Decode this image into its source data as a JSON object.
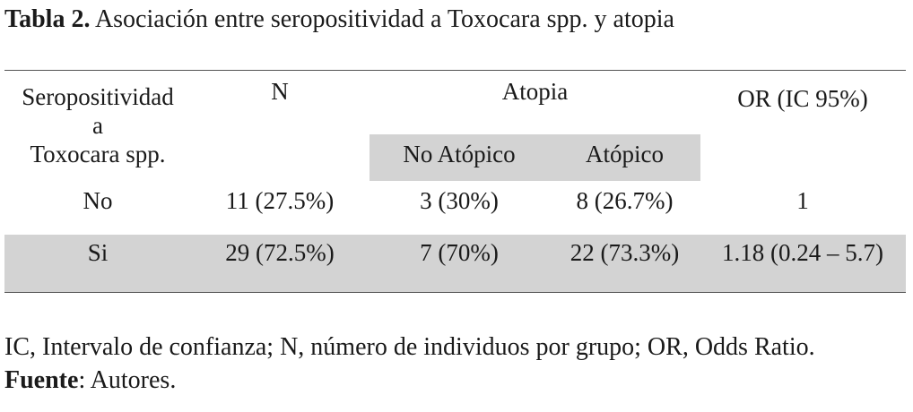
{
  "caption": {
    "label": "Tabla 2.",
    "text": "Asociación entre seropositividad a Toxocara spp. y atopia"
  },
  "table": {
    "header": {
      "stub_line1": "Seropositividad",
      "stub_line2": "a",
      "stub_line3": "Toxocara spp.",
      "n": "N",
      "atopia": "Atopia",
      "or": "OR (IC 95%)",
      "no_atopico": "No Atópico",
      "atopico": "Atópico"
    },
    "rows": [
      {
        "label": "No",
        "n": "11 (27.5%)",
        "no_atopico": "3 (30%)",
        "atopico": "8 (26.7%)",
        "or": "1"
      },
      {
        "label": "Si",
        "n": "29 (72.5%)",
        "no_atopico": "7 (70%)",
        "atopico": "22 (73.3%)",
        "or": "1.18 (0.24 – 5.7)"
      }
    ],
    "shade_color": "#d3d3d3"
  },
  "footnote": {
    "abbreviations": "IC, Intervalo de confianza; N, número de individuos por grupo; OR, Odds Ratio.",
    "source_label": "Fuente",
    "source_text": ": Autores."
  }
}
